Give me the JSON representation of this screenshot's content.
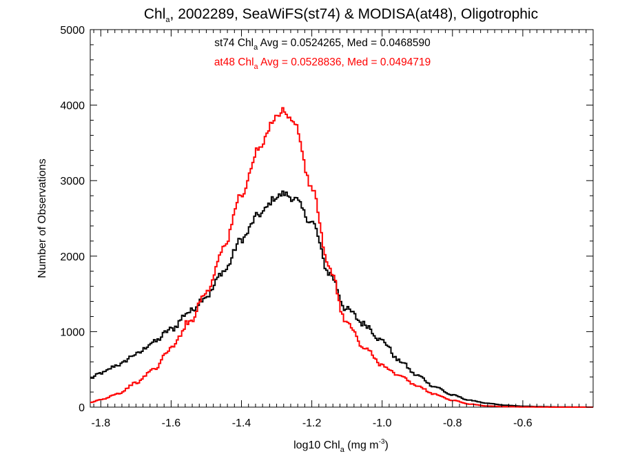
{
  "chart_data": {
    "type": "histogram",
    "title": {
      "prefix": "Chl",
      "subscript": "a",
      "rest": ", 2002289, SeaWiFS(st74) & MODISA(at48), Oligotrophic"
    },
    "xlabel": {
      "prefix": "log10 Chl",
      "subscript": "a",
      "unit_pre": " (mg m",
      "unit_sup": "-3",
      "unit_post": ")"
    },
    "ylabel": "Number of Observations",
    "xlim": [
      -1.83,
      -0.4
    ],
    "ylim": [
      0,
      5000
    ],
    "x_ticks": [
      -1.8,
      -1.6,
      -1.4,
      -1.2,
      -1.0,
      -0.8,
      -0.6
    ],
    "x_tick_labels": [
      "-1.8",
      "-1.6",
      "-1.4",
      "-1.2",
      "-1.0",
      "-0.8",
      "-0.6"
    ],
    "y_ticks": [
      0,
      1000,
      2000,
      3000,
      4000,
      5000
    ],
    "y_tick_labels": [
      "0",
      "1000",
      "2000",
      "3000",
      "4000",
      "5000"
    ],
    "annotations": [
      {
        "color": "#000000",
        "prefix": "st74 Chl",
        "subscript": "a",
        "rest": " Avg = 0.0524265, Med = 0.0468590"
      },
      {
        "color": "#ff0000",
        "prefix": "at48 Chl",
        "subscript": "a",
        "rest": " Avg = 0.0528836, Med = 0.0494719"
      }
    ],
    "series": [
      {
        "color": "#000000",
        "points": [
          [
            -1.83,
            380
          ],
          [
            -1.8,
            450
          ],
          [
            -1.75,
            560
          ],
          [
            -1.7,
            700
          ],
          [
            -1.65,
            860
          ],
          [
            -1.6,
            1030
          ],
          [
            -1.55,
            1260
          ],
          [
            -1.5,
            1470
          ],
          [
            -1.45,
            1800
          ],
          [
            -1.4,
            2220
          ],
          [
            -1.35,
            2550
          ],
          [
            -1.3,
            2780
          ],
          [
            -1.28,
            2830
          ],
          [
            -1.25,
            2760
          ],
          [
            -1.2,
            2450
          ],
          [
            -1.15,
            1770
          ],
          [
            -1.1,
            1290
          ],
          [
            -1.05,
            1100
          ],
          [
            -1.0,
            880
          ],
          [
            -0.95,
            610
          ],
          [
            -0.9,
            420
          ],
          [
            -0.85,
            270
          ],
          [
            -0.8,
            160
          ],
          [
            -0.75,
            90
          ],
          [
            -0.7,
            50
          ],
          [
            -0.65,
            25
          ],
          [
            -0.6,
            12
          ],
          [
            -0.55,
            6
          ],
          [
            -0.5,
            3
          ],
          [
            -0.45,
            1
          ],
          [
            -0.4,
            0
          ]
        ]
      },
      {
        "color": "#ff0000",
        "points": [
          [
            -1.83,
            60
          ],
          [
            -1.8,
            100
          ],
          [
            -1.75,
            180
          ],
          [
            -1.7,
            320
          ],
          [
            -1.65,
            500
          ],
          [
            -1.6,
            780
          ],
          [
            -1.55,
            1120
          ],
          [
            -1.5,
            1520
          ],
          [
            -1.45,
            2120
          ],
          [
            -1.4,
            2820
          ],
          [
            -1.35,
            3420
          ],
          [
            -1.3,
            3860
          ],
          [
            -1.28,
            3930
          ],
          [
            -1.25,
            3760
          ],
          [
            -1.2,
            2900
          ],
          [
            -1.15,
            1830
          ],
          [
            -1.1,
            1110
          ],
          [
            -1.05,
            780
          ],
          [
            -1.0,
            560
          ],
          [
            -0.95,
            410
          ],
          [
            -0.9,
            280
          ],
          [
            -0.85,
            170
          ],
          [
            -0.8,
            90
          ],
          [
            -0.75,
            40
          ],
          [
            -0.7,
            15
          ],
          [
            -0.65,
            6
          ],
          [
            -0.6,
            3
          ],
          [
            -0.55,
            1
          ],
          [
            -0.5,
            0
          ],
          [
            -0.45,
            0
          ],
          [
            -0.4,
            0
          ]
        ]
      }
    ]
  }
}
